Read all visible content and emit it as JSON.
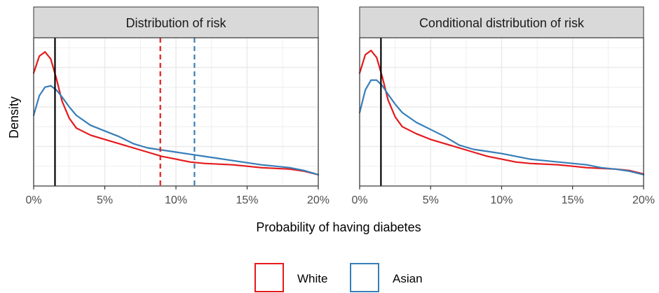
{
  "chart_data": {
    "type": "line",
    "x_axis_label": "Probability of having diabetes",
    "y_axis_label": "Density",
    "xlim": [
      0,
      20
    ],
    "x_ticks": [
      0,
      5,
      10,
      15,
      20
    ],
    "x_tick_labels": [
      "0%",
      "5%",
      "10%",
      "15%",
      "20%"
    ],
    "y_tick_labels_shown": false,
    "grid": true,
    "legend": {
      "placement": "bottom",
      "entries": [
        {
          "name": "White",
          "color": "#e41a1c"
        },
        {
          "name": "Asian",
          "color": "#377eb8"
        }
      ]
    },
    "panels": [
      {
        "title": "Distribution of risk",
        "vertical_lines": [
          {
            "x": 1.5,
            "color": "#000000",
            "style": "solid"
          },
          {
            "x": 8.9,
            "color": "#e41a1c",
            "style": "dashed"
          },
          {
            "x": 11.3,
            "color": "#377eb8",
            "style": "dashed"
          }
        ],
        "series": [
          {
            "name": "White",
            "color": "#e41a1c",
            "x": [
              0,
              0.4,
              0.8,
              1.2,
              1.6,
              2.0,
              2.5,
              3.0,
              4.0,
              5.0,
              6.0,
              7.0,
              8.0,
              9.0,
              10.0,
              11.0,
              12.0,
              13.0,
              14.0,
              15.0,
              16.0,
              17.0,
              18.0,
              19.0,
              20.0
            ],
            "y": [
              0.8,
              0.92,
              0.95,
              0.9,
              0.76,
              0.6,
              0.48,
              0.41,
              0.36,
              0.33,
              0.3,
              0.27,
              0.24,
              0.21,
              0.19,
              0.17,
              0.16,
              0.155,
              0.15,
              0.14,
              0.13,
              0.125,
              0.12,
              0.105,
              0.08
            ]
          },
          {
            "name": "Asian",
            "color": "#377eb8",
            "x": [
              0,
              0.4,
              0.8,
              1.2,
              1.6,
              2.0,
              2.5,
              3.0,
              4.0,
              5.0,
              6.0,
              7.0,
              8.0,
              9.0,
              10.0,
              11.0,
              12.0,
              13.0,
              14.0,
              15.0,
              16.0,
              17.0,
              18.0,
              19.0,
              20.0
            ],
            "y": [
              0.5,
              0.64,
              0.7,
              0.71,
              0.68,
              0.63,
              0.56,
              0.5,
              0.43,
              0.39,
              0.35,
              0.3,
              0.27,
              0.255,
              0.24,
              0.225,
              0.21,
              0.195,
              0.18,
              0.165,
              0.15,
              0.14,
              0.13,
              0.11,
              0.08
            ]
          }
        ]
      },
      {
        "title": "Conditional distribution of risk",
        "vertical_lines": [
          {
            "x": 1.5,
            "color": "#000000",
            "style": "solid"
          }
        ],
        "series": [
          {
            "name": "White",
            "color": "#e41a1c",
            "x": [
              0,
              0.4,
              0.8,
              1.2,
              1.6,
              2.0,
              2.5,
              3.0,
              4.0,
              5.0,
              6.0,
              7.0,
              8.0,
              9.0,
              10.0,
              11.0,
              12.0,
              13.0,
              14.0,
              15.0,
              16.0,
              17.0,
              18.0,
              19.0,
              20.0
            ],
            "y": [
              0.8,
              0.93,
              0.96,
              0.91,
              0.77,
              0.61,
              0.49,
              0.42,
              0.37,
              0.33,
              0.3,
              0.27,
              0.24,
              0.21,
              0.19,
              0.17,
              0.16,
              0.155,
              0.15,
              0.14,
              0.13,
              0.125,
              0.12,
              0.11,
              0.085
            ]
          },
          {
            "name": "Asian",
            "color": "#377eb8",
            "x": [
              0,
              0.4,
              0.8,
              1.2,
              1.6,
              2.0,
              2.5,
              3.0,
              4.0,
              5.0,
              6.0,
              7.0,
              8.0,
              9.0,
              10.0,
              11.0,
              12.0,
              13.0,
              14.0,
              15.0,
              16.0,
              17.0,
              18.0,
              19.0,
              20.0
            ],
            "y": [
              0.52,
              0.68,
              0.75,
              0.75,
              0.71,
              0.65,
              0.58,
              0.52,
              0.45,
              0.4,
              0.35,
              0.29,
              0.26,
              0.245,
              0.23,
              0.21,
              0.19,
              0.18,
              0.17,
              0.16,
              0.15,
              0.13,
              0.12,
              0.105,
              0.08
            ]
          }
        ]
      }
    ]
  }
}
